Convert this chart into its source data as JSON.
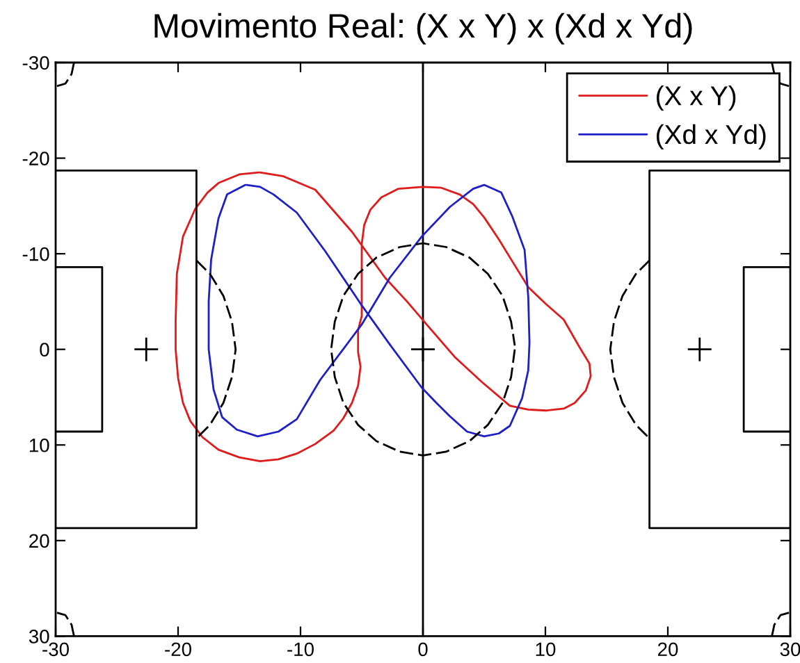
{
  "chart_data": {
    "type": "line",
    "title": "Movimento Real: (X x Y) x (Xd x Yd)",
    "xlim": [
      -30,
      30
    ],
    "ylim": [
      30,
      -30
    ],
    "xticks": [
      -30,
      -20,
      -10,
      0,
      10,
      20,
      30
    ],
    "yticks": [
      -30,
      -20,
      -10,
      0,
      10,
      20,
      30
    ],
    "grid": false,
    "legend": "top right",
    "ref_lines": [
      {
        "axis": "x",
        "value": 0,
        "color": "#000000"
      }
    ],
    "series": [
      {
        "name": "(X x Y)",
        "color": "#e01b1b",
        "x": [
          -13.3,
          -11.4,
          -8.8,
          -5.8,
          -3.1,
          -1.3,
          0.3,
          2.6,
          4.8,
          7.1,
          8.6,
          10.1,
          11.5,
          12.4,
          13.3,
          13.7,
          13.6,
          12.8,
          11.5,
          10.0,
          8.6,
          7.3,
          6.2,
          5.0,
          4.1,
          3.0,
          1.5,
          0.0,
          -2.0,
          -3.4,
          -4.3,
          -4.8,
          -5.0,
          -5.0,
          -5.0,
          -5.3,
          -5.3,
          -5.1,
          -5.3,
          -5.8,
          -6.5,
          -7.3,
          -8.8,
          -10.3,
          -11.8,
          -13.3,
          -15.0,
          -16.7,
          -18.0,
          -19.0,
          -19.6,
          -20.0,
          -20.2,
          -20.2,
          -20.1,
          -19.6,
          -18.6,
          -17.6,
          -16.7,
          -15.0,
          -13.4
        ],
        "values": [
          -18.5,
          -18.1,
          -16.7,
          -12.3,
          -7.5,
          -5.0,
          -2.6,
          0.8,
          3.4,
          5.9,
          6.3,
          6.4,
          6.2,
          5.6,
          4.3,
          2.8,
          1.5,
          -0.2,
          -3.1,
          -4.8,
          -6.5,
          -9.2,
          -11.5,
          -13.8,
          -15.2,
          -16.2,
          -16.9,
          -17.0,
          -16.8,
          -15.9,
          -14.6,
          -13.0,
          -11.0,
          -7.0,
          -3.5,
          -2.0,
          0.3,
          1.8,
          3.8,
          5.6,
          7.2,
          8.5,
          9.9,
          10.9,
          11.5,
          11.7,
          11.3,
          10.5,
          9.2,
          7.5,
          5.6,
          3.0,
          0.0,
          -3.0,
          -7.9,
          -11.8,
          -14.7,
          -16.4,
          -17.4,
          -18.3,
          -18.5
        ]
      },
      {
        "name": "(Xd x Yd)",
        "color": "#1f1fc8",
        "x": [
          -14.5,
          -16.0,
          -16.7,
          -17.3,
          -17.5,
          -17.5,
          -17.1,
          -16.4,
          -15.2,
          -13.5,
          -11.8,
          -10.3,
          -8.4,
          -6.7,
          -5.0,
          -2.7,
          -0.1,
          2.2,
          4.1,
          5.0,
          6.4,
          7.3,
          8.3,
          8.6,
          8.7,
          8.6,
          8.1,
          7.1,
          6.2,
          5.0,
          3.6,
          2.2,
          1.1,
          -0.1,
          -2.7,
          -5.0,
          -8.0,
          -10.3,
          -12.2,
          -13.3,
          -14.4
        ],
        "values": [
          -17.2,
          -16.2,
          -13.7,
          -9.4,
          -5.0,
          0.0,
          4.2,
          7.1,
          8.4,
          9.1,
          8.6,
          7.3,
          3.2,
          0.3,
          -2.6,
          -7.5,
          -11.8,
          -14.9,
          -16.8,
          -17.2,
          -16.4,
          -13.9,
          -10.4,
          -5.5,
          -0.7,
          2.2,
          5.1,
          8.0,
          8.8,
          9.1,
          8.6,
          7.0,
          5.6,
          4.0,
          -0.5,
          -4.6,
          -10.3,
          -14.3,
          -16.2,
          -17.0,
          -17.2
        ]
      },
      {
        "color": "#000000",
        "line_style": "solid",
        "x": [
          -30,
          -18.5,
          -18.5,
          -30,
          null,
          -30,
          -26.2,
          -26.2,
          -30,
          null,
          30,
          18.5,
          18.5,
          30,
          null,
          30,
          26.2,
          26.2,
          30
        ],
        "values": [
          -18.7,
          -18.7,
          18.7,
          18.7,
          null,
          -8.6,
          -8.6,
          8.6,
          8.6,
          null,
          -18.7,
          -18.7,
          18.7,
          18.7,
          null,
          -8.6,
          -8.6,
          8.6,
          8.6
        ]
      },
      {
        "color": "#000000",
        "line_style": "dashed",
        "x": [
          7.5,
          7.2,
          6.5,
          5.3,
          3.8,
          1.9,
          0,
          -1.9,
          -3.8,
          -5.3,
          -6.5,
          -7.2,
          -7.5,
          -7.2,
          -6.5,
          -5.3,
          -3.8,
          -1.9,
          0,
          1.9,
          3.8,
          5.3,
          6.5,
          7.2,
          7.5,
          null,
          -18.5,
          -17.4,
          -16.3,
          -15.6,
          -15.3,
          -15.6,
          -16.3,
          -17.4,
          -18.5,
          null,
          18.5,
          17.4,
          16.3,
          15.6,
          15.3,
          15.6,
          16.3,
          17.4,
          18.5,
          null,
          -28.5,
          -28.7,
          -29.2,
          -30,
          null,
          -28.5,
          -28.7,
          -29.2,
          -30,
          null,
          28.5,
          28.7,
          29.2,
          30,
          null,
          28.5,
          28.7,
          29.2,
          30
        ],
        "values": [
          0,
          2.9,
          5.6,
          7.9,
          9.6,
          10.7,
          11.1,
          10.7,
          9.6,
          7.9,
          5.6,
          2.9,
          0,
          -2.9,
          -5.6,
          -7.9,
          -9.6,
          -10.7,
          -11.1,
          -10.7,
          -9.6,
          -7.9,
          -5.6,
          -2.9,
          -0.4,
          null,
          -9.3,
          -7.9,
          -5.6,
          -2.9,
          0,
          2.9,
          5.6,
          7.9,
          9.3,
          null,
          -9.3,
          -7.9,
          -5.6,
          -2.9,
          0,
          2.9,
          5.6,
          7.9,
          9.3,
          null,
          -30,
          -28.8,
          -27.8,
          -27.5,
          null,
          30,
          28.8,
          27.8,
          27.5,
          null,
          -30,
          -28.8,
          -27.8,
          -27.5,
          null,
          30,
          28.8,
          27.8,
          27.5
        ]
      },
      {
        "type": "scatter",
        "color": "#000000",
        "marker": "cross",
        "x": [
          -22.6,
          0,
          22.6
        ],
        "values": [
          0,
          0,
          0
        ]
      }
    ]
  }
}
